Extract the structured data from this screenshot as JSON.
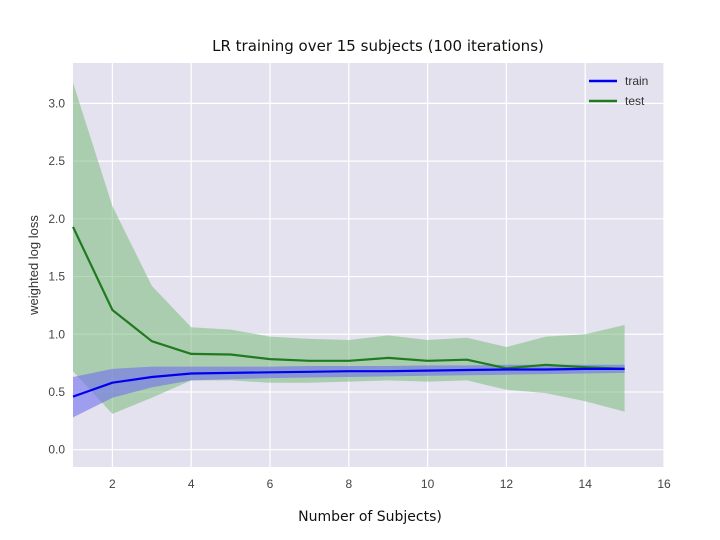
{
  "chart_data": {
    "type": "line",
    "title": "LR training over 15 subjects (100 iterations)",
    "xlabel": "Number of Subjects)",
    "ylabel": "weighted log loss",
    "xlim": [
      1,
      16
    ],
    "ylim": [
      -0.15,
      3.35
    ],
    "xticks": [
      2,
      4,
      6,
      8,
      10,
      12,
      14,
      16
    ],
    "yticks": [
      0.0,
      0.5,
      1.0,
      1.5,
      2.0,
      2.5,
      3.0
    ],
    "grid": true,
    "legend_position": "top-right",
    "x": [
      1,
      2,
      3,
      4,
      5,
      6,
      7,
      8,
      9,
      10,
      11,
      12,
      13,
      14,
      15
    ],
    "series": [
      {
        "name": "train",
        "color": "#0000ee",
        "band_color": "#7070ee",
        "values": [
          0.46,
          0.58,
          0.63,
          0.66,
          0.665,
          0.67,
          0.675,
          0.68,
          0.68,
          0.685,
          0.69,
          0.695,
          0.695,
          0.7,
          0.7
        ],
        "lower": [
          0.28,
          0.45,
          0.54,
          0.6,
          0.61,
          0.62,
          0.625,
          0.63,
          0.635,
          0.64,
          0.645,
          0.65,
          0.655,
          0.66,
          0.665
        ],
        "upper": [
          0.63,
          0.7,
          0.72,
          0.72,
          0.72,
          0.72,
          0.725,
          0.725,
          0.725,
          0.73,
          0.73,
          0.735,
          0.735,
          0.735,
          0.735
        ]
      },
      {
        "name": "test",
        "color": "#207a20",
        "band_color": "#86c086",
        "values": [
          1.93,
          1.21,
          0.94,
          0.83,
          0.825,
          0.785,
          0.77,
          0.77,
          0.795,
          0.77,
          0.78,
          0.705,
          0.735,
          0.715,
          0.7
        ],
        "lower": [
          0.68,
          0.31,
          0.45,
          0.6,
          0.6,
          0.58,
          0.58,
          0.59,
          0.6,
          0.59,
          0.6,
          0.52,
          0.49,
          0.42,
          0.33
        ],
        "upper": [
          3.18,
          2.11,
          1.42,
          1.06,
          1.04,
          0.98,
          0.96,
          0.95,
          0.99,
          0.95,
          0.97,
          0.89,
          0.98,
          1.0,
          1.08
        ]
      }
    ]
  }
}
